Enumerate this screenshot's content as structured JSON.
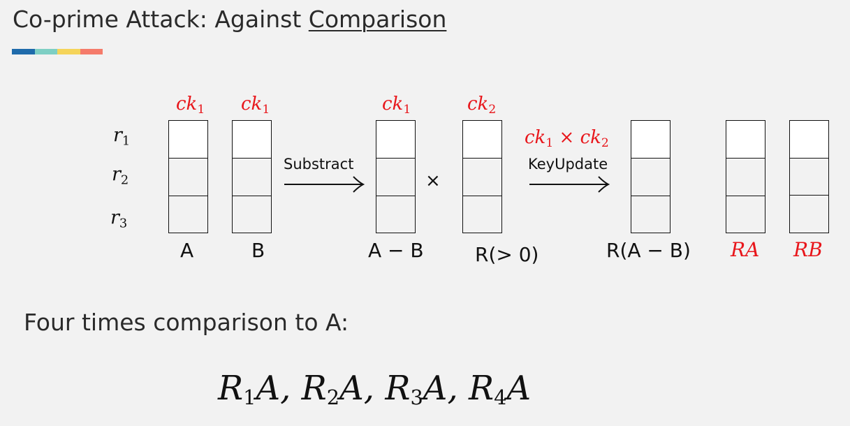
{
  "slide": {
    "title_prefix": "Co-prime Attack: Against ",
    "title_underlined": "Comparison",
    "accent_colors": [
      "#1f6bab",
      "#7ecfc4",
      "#f5d45a",
      "#f57b6b"
    ]
  },
  "rows": [
    {
      "label": "r",
      "sub": "1"
    },
    {
      "label": "r",
      "sub": "2"
    },
    {
      "label": "r",
      "sub": "3"
    }
  ],
  "columns": [
    {
      "key": "ck",
      "key_sub": "1",
      "caption": "A"
    },
    {
      "key": "ck",
      "key_sub": "1",
      "caption": "B"
    },
    {
      "key": "ck",
      "key_sub": "1",
      "caption": "A − B"
    },
    {
      "key": "ck",
      "key_sub": "2",
      "caption": "R(> 0)"
    },
    {
      "key": "",
      "key_sub": "",
      "caption": "R(A − B)"
    },
    {
      "key": "",
      "key_sub": "",
      "caption": "RA"
    },
    {
      "key": "",
      "key_sub": "",
      "caption": "RB"
    }
  ],
  "operations": {
    "subtract_label": "Substract",
    "multiply_symbol": "×",
    "keyupdate_label": "KeyUpdate",
    "keyupdate_key_a": "ck",
    "keyupdate_key_a_sub": "1",
    "keyupdate_times": " × ",
    "keyupdate_key_b": "ck",
    "keyupdate_key_b_sub": "2"
  },
  "text": {
    "four_times": "Four times comparison to A:",
    "formula": [
      {
        "v": "R",
        "s": "1",
        "t": "A, "
      },
      {
        "v": "R",
        "s": "2",
        "t": "A, "
      },
      {
        "v": "R",
        "s": "3",
        "t": "A, "
      },
      {
        "v": "R",
        "s": "4",
        "t": "A"
      }
    ]
  },
  "colors": {
    "key_red": "#e8161b",
    "cell_white": "#ffffff",
    "background": "#f2f2f2"
  }
}
